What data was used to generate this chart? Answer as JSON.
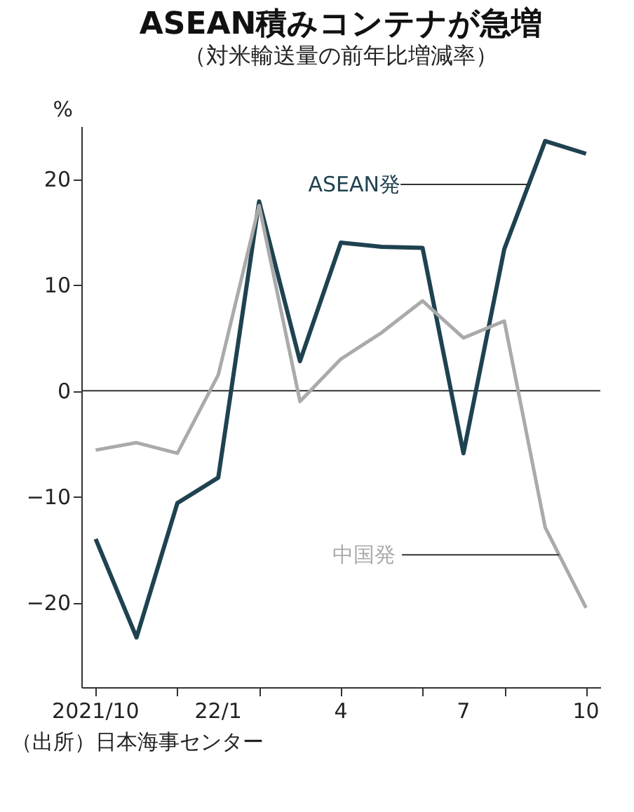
{
  "chart_data": {
    "type": "line",
    "title": "ASEAN積みコンテナが急増",
    "subtitle": "（対米輸送量の前年比増減率）",
    "ylabel": "%",
    "categories": [
      "2021/10",
      null,
      null,
      "22/1",
      null,
      null,
      "4",
      null,
      null,
      "7",
      null,
      null,
      "10"
    ],
    "series": [
      {
        "name": "ASEAN発",
        "color": "#1f4250",
        "values": [
          -14,
          -23.3,
          -10.6,
          -8.2,
          17.9,
          2.8,
          14,
          13.6,
          13.5,
          -5.9,
          13.4,
          23.6,
          22.4
        ]
      },
      {
        "name": "中国発",
        "color": "#aaaaaa",
        "values": [
          -5.6,
          -4.9,
          -5.9,
          1.5,
          17.5,
          -1,
          3,
          5.5,
          8.5,
          5,
          6.6,
          -12.9,
          -20.5
        ]
      }
    ],
    "ylim": [
      -28,
      25
    ],
    "yticks": [
      -20,
      -10,
      0,
      10,
      20
    ],
    "ref_lines": [
      {
        "axis": "y",
        "value": 0,
        "color": "#333333"
      }
    ],
    "annotations": [
      "（出所）日本海事センター"
    ],
    "legend": false,
    "grid": false,
    "marker": "none",
    "line_style": "solid"
  }
}
